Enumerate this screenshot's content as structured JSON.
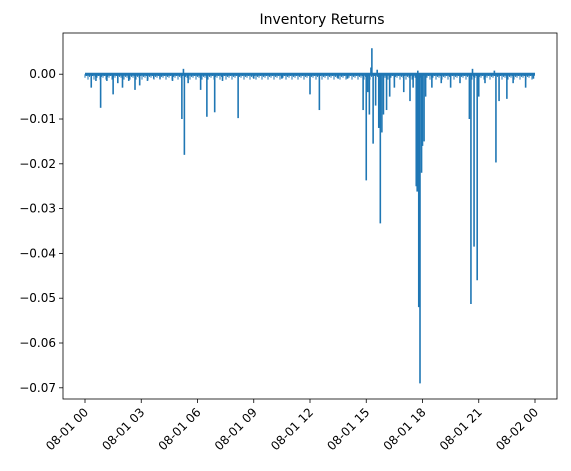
{
  "chart_data": {
    "type": "line",
    "title": "Inventory Returns",
    "xlabel": "",
    "ylabel": "",
    "x_domain": [
      "08-01 00:00",
      "08-02 00:00"
    ],
    "x_tick_labels": [
      "08-01 00",
      "08-01 03",
      "08-01 06",
      "08-01 09",
      "08-01 12",
      "08-01 15",
      "08-01 18",
      "08-01 21",
      "08-02 00"
    ],
    "y_ticks": [
      0.0,
      -0.01,
      -0.02,
      -0.03,
      -0.04,
      -0.05,
      -0.06,
      -0.07
    ],
    "y_tick_labels": [
      "0.00",
      "−0.01",
      "−0.02",
      "−0.03",
      "−0.04",
      "−0.05",
      "−0.06",
      "−0.07"
    ],
    "ylim": [
      -0.0725,
      0.0092
    ],
    "grid": false,
    "legend": "none",
    "series": [
      {
        "color": "#1f77b4",
        "baseline": 0.0,
        "spikes": [
          {
            "x": "08-01 00:20",
            "y": -0.003
          },
          {
            "x": "08-01 00:35",
            "y": -0.0015
          },
          {
            "x": "08-01 00:50",
            "y": -0.0075
          },
          {
            "x": "08-01 01:10",
            "y": -0.0015
          },
          {
            "x": "08-01 01:30",
            "y": -0.0045
          },
          {
            "x": "08-01 01:45",
            "y": -0.002
          },
          {
            "x": "08-01 02:00",
            "y": -0.003
          },
          {
            "x": "08-01 02:20",
            "y": -0.0015
          },
          {
            "x": "08-01 02:40",
            "y": -0.0035
          },
          {
            "x": "08-01 02:55",
            "y": -0.0025
          },
          {
            "x": "08-01 03:20",
            "y": -0.0015
          },
          {
            "x": "08-01 03:40",
            "y": -0.001
          },
          {
            "x": "08-01 04:00",
            "y": -0.001
          },
          {
            "x": "08-01 04:40",
            "y": -0.0015
          },
          {
            "x": "08-01 05:10",
            "y": -0.01
          },
          {
            "x": "08-01 05:15",
            "y": 0.0012
          },
          {
            "x": "08-01 05:18",
            "y": -0.018
          },
          {
            "x": "08-01 05:30",
            "y": -0.002
          },
          {
            "x": "08-01 06:10",
            "y": -0.0035
          },
          {
            "x": "08-01 06:30",
            "y": -0.0095
          },
          {
            "x": "08-01 06:55",
            "y": -0.0085
          },
          {
            "x": "08-01 07:20",
            "y": -0.0015
          },
          {
            "x": "08-01 08:10",
            "y": -0.0098
          },
          {
            "x": "08-01 09:00",
            "y": -0.001
          },
          {
            "x": "08-01 10:30",
            "y": -0.001
          },
          {
            "x": "08-01 12:00",
            "y": -0.0045
          },
          {
            "x": "08-01 12:30",
            "y": -0.008
          },
          {
            "x": "08-01 13:30",
            "y": -0.001
          },
          {
            "x": "08-01 14:00",
            "y": -0.001
          },
          {
            "x": "08-01 14:50",
            "y": -0.008
          },
          {
            "x": "08-01 15:00",
            "y": -0.0237
          },
          {
            "x": "08-01 15:05",
            "y": -0.004
          },
          {
            "x": "08-01 15:10",
            "y": -0.009
          },
          {
            "x": "08-01 15:15",
            "y": 0.0015
          },
          {
            "x": "08-01 15:18",
            "y": 0.0058
          },
          {
            "x": "08-01 15:22",
            "y": -0.0155
          },
          {
            "x": "08-01 15:30",
            "y": -0.007
          },
          {
            "x": "08-01 15:35",
            "y": 0.001
          },
          {
            "x": "08-01 15:40",
            "y": -0.012
          },
          {
            "x": "08-01 15:45",
            "y": -0.0333
          },
          {
            "x": "08-01 15:50",
            "y": -0.013
          },
          {
            "x": "08-01 15:55",
            "y": -0.009
          },
          {
            "x": "08-01 16:05",
            "y": -0.008
          },
          {
            "x": "08-01 16:15",
            "y": -0.005
          },
          {
            "x": "08-01 16:30",
            "y": -0.003
          },
          {
            "x": "08-01 17:00",
            "y": -0.004
          },
          {
            "x": "08-01 17:20",
            "y": -0.006
          },
          {
            "x": "08-01 17:30",
            "y": -0.003
          },
          {
            "x": "08-01 17:40",
            "y": -0.025
          },
          {
            "x": "08-01 17:43",
            "y": -0.0262
          },
          {
            "x": "08-01 17:45",
            "y": 0.0008
          },
          {
            "x": "08-01 17:48",
            "y": -0.052
          },
          {
            "x": "08-01 17:52",
            "y": -0.069
          },
          {
            "x": "08-01 17:57",
            "y": -0.022
          },
          {
            "x": "08-01 18:00",
            "y": -0.016
          },
          {
            "x": "08-01 18:05",
            "y": -0.015
          },
          {
            "x": "08-01 18:10",
            "y": -0.005
          },
          {
            "x": "08-01 18:30",
            "y": -0.003
          },
          {
            "x": "08-01 19:00",
            "y": -0.002
          },
          {
            "x": "08-01 19:30",
            "y": -0.003
          },
          {
            "x": "08-01 20:00",
            "y": -0.002
          },
          {
            "x": "08-01 20:30",
            "y": -0.01
          },
          {
            "x": "08-01 20:35",
            "y": -0.0513
          },
          {
            "x": "08-01 20:40",
            "y": 0.0012
          },
          {
            "x": "08-01 20:45",
            "y": -0.0385
          },
          {
            "x": "08-01 20:55",
            "y": -0.046
          },
          {
            "x": "08-01 21:00",
            "y": -0.005
          },
          {
            "x": "08-01 21:20",
            "y": -0.002
          },
          {
            "x": "08-01 21:50",
            "y": 0.0008
          },
          {
            "x": "08-01 21:55",
            "y": -0.0197
          },
          {
            "x": "08-01 22:05",
            "y": -0.006
          },
          {
            "x": "08-01 22:30",
            "y": -0.0055
          },
          {
            "x": "08-01 22:50",
            "y": -0.002
          },
          {
            "x": "08-01 23:30",
            "y": -0.003
          },
          {
            "x": "08-01 23:55",
            "y": -0.001
          }
        ]
      }
    ]
  }
}
